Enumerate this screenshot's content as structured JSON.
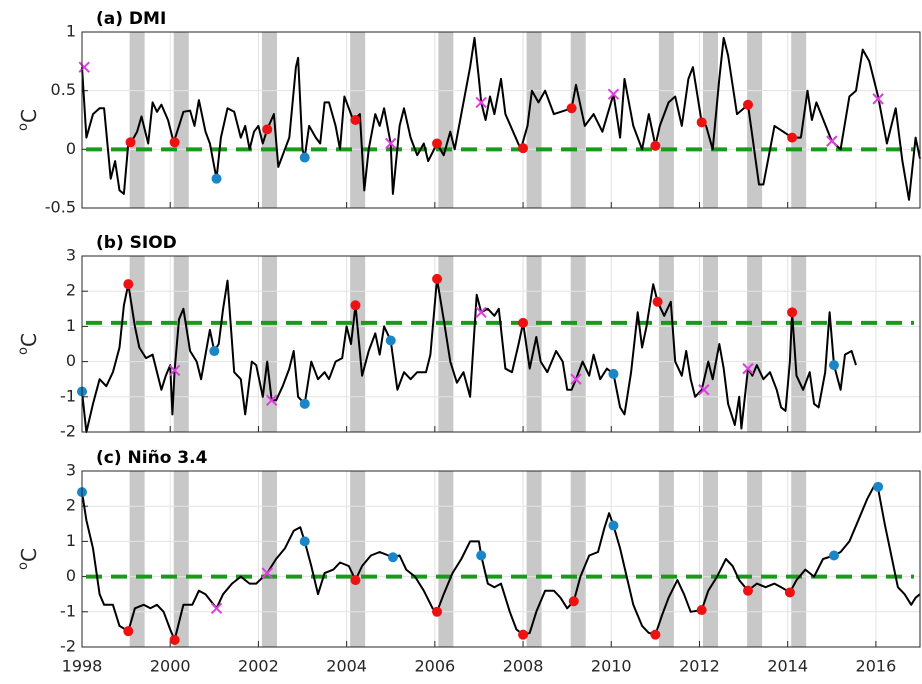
{
  "chart_data": [
    {
      "type": "line",
      "title": "(a) DMI",
      "ylabel": [
        "o",
        "C"
      ],
      "color": "#000000",
      "xlim": [
        1998,
        2017
      ],
      "ylim": [
        -0.5,
        1
      ],
      "yticks": [
        -0.5,
        0,
        0.5,
        1
      ],
      "grid": true,
      "reference_line": {
        "value": 0,
        "color": "#1a9a1a"
      },
      "shaded": [
        [
          1999.08,
          1999.42
        ],
        [
          2000.08,
          2000.42
        ],
        [
          2002.08,
          2002.42
        ],
        [
          2004.08,
          2004.42
        ],
        [
          2006.08,
          2006.42
        ],
        [
          2008.08,
          2008.42
        ],
        [
          2009.08,
          2009.42
        ],
        [
          2011.08,
          2011.42
        ],
        [
          2012.08,
          2012.42
        ],
        [
          2013.08,
          2013.42
        ],
        [
          2014.08,
          2014.42
        ]
      ],
      "shade_color": "#c8c8c8",
      "x": [
        1998.0,
        1998.1,
        1998.25,
        1998.4,
        1998.5,
        1998.65,
        1998.75,
        1998.85,
        1998.95,
        1999.05,
        1999.1,
        1999.25,
        1999.35,
        1999.5,
        1999.6,
        1999.7,
        1999.8,
        1999.95,
        2000.08,
        2000.2,
        2000.3,
        2000.45,
        2000.55,
        2000.65,
        2000.8,
        2000.9,
        2001.05,
        2001.15,
        2001.3,
        2001.45,
        2001.6,
        2001.7,
        2001.8,
        2001.9,
        2002.0,
        2002.1,
        2002.2,
        2002.35,
        2002.45,
        2002.6,
        2002.7,
        2002.85,
        2002.9,
        2003.0,
        2003.05,
        2003.15,
        2003.3,
        2003.4,
        2003.5,
        2003.6,
        2003.75,
        2003.85,
        2003.95,
        2004.15,
        2004.3,
        2004.4,
        2004.5,
        2004.65,
        2004.75,
        2004.85,
        2005.0,
        2005.05,
        2005.2,
        2005.3,
        2005.45,
        2005.6,
        2005.75,
        2005.85,
        2006.05,
        2006.2,
        2006.35,
        2006.45,
        2006.6,
        2006.8,
        2006.9,
        2007.0,
        2007.05,
        2007.15,
        2007.25,
        2007.35,
        2007.5,
        2007.6,
        2007.95,
        2008.1,
        2008.2,
        2008.35,
        2008.5,
        2008.7,
        2009.1,
        2009.2,
        2009.4,
        2009.6,
        2009.8,
        2010.05,
        2010.2,
        2010.3,
        2010.5,
        2010.7,
        2010.85,
        2011.0,
        2011.1,
        2011.3,
        2011.45,
        2011.6,
        2011.75,
        2011.85,
        2012.05,
        2012.15,
        2012.3,
        2012.45,
        2012.55,
        2012.65,
        2012.85,
        2013.1,
        2013.35,
        2013.45,
        2013.7,
        2014.1,
        2014.3,
        2014.45,
        2014.55,
        2014.65,
        2015.0,
        2015.2,
        2015.4,
        2015.55,
        2015.7,
        2015.85,
        2016.05,
        2016.25,
        2016.45,
        2016.6,
        2016.75,
        2016.9,
        2017.0
      ],
      "values": [
        0.7,
        0.1,
        0.3,
        0.35,
        0.35,
        -0.25,
        -0.1,
        -0.35,
        -0.38,
        0.05,
        0.05,
        0.15,
        0.28,
        0.05,
        0.4,
        0.32,
        0.38,
        0.25,
        0.06,
        0.2,
        0.32,
        0.33,
        0.2,
        0.42,
        0.15,
        0.05,
        -0.25,
        0.1,
        0.35,
        0.32,
        0.1,
        0.2,
        0.0,
        0.15,
        0.2,
        0.05,
        0.17,
        0.3,
        -0.15,
        0.0,
        0.1,
        0.7,
        0.78,
        0.0,
        -0.07,
        0.2,
        0.1,
        0.05,
        0.4,
        0.4,
        0.2,
        0.0,
        0.45,
        0.25,
        0.3,
        -0.35,
        0.0,
        0.3,
        0.2,
        0.35,
        0.05,
        -0.38,
        0.2,
        0.35,
        0.1,
        -0.05,
        0.05,
        -0.1,
        0.05,
        -0.05,
        0.15,
        0.0,
        0.3,
        0.7,
        0.95,
        0.6,
        0.4,
        0.25,
        0.45,
        0.3,
        0.6,
        0.3,
        0.0,
        0.2,
        0.5,
        0.4,
        0.5,
        0.3,
        0.35,
        0.55,
        0.2,
        0.3,
        0.15,
        0.47,
        0.1,
        0.6,
        0.2,
        0.0,
        0.3,
        0.03,
        0.2,
        0.4,
        0.45,
        0.2,
        0.6,
        0.7,
        0.23,
        0.2,
        0.0,
        0.6,
        0.95,
        0.8,
        0.3,
        0.38,
        -0.3,
        -0.3,
        0.2,
        0.1,
        0.1,
        0.5,
        0.25,
        0.4,
        0.07,
        0.0,
        0.45,
        0.5,
        0.85,
        0.75,
        0.45,
        0.05,
        0.35,
        -0.1,
        -0.43,
        0.1,
        -0.08
      ],
      "markers": [
        {
          "symbol": "circle",
          "color": "#ee1111",
          "x": [
            1999.1,
            2000.1,
            2002.2,
            2004.2,
            2006.05,
            2008.0,
            2009.1,
            2011.0,
            2012.05,
            2013.1,
            2014.1
          ],
          "values": [
            0.06,
            0.06,
            0.17,
            0.25,
            0.05,
            0.01,
            0.35,
            0.03,
            0.23,
            0.38,
            0.1
          ]
        },
        {
          "symbol": "circle",
          "color": "#1a86c8",
          "x": [
            2001.05,
            2003.05
          ],
          "values": [
            -0.25,
            -0.07
          ]
        },
        {
          "symbol": "cross",
          "color": "#e03ce0",
          "x": [
            1998.05,
            2005.0,
            2007.05,
            2010.05,
            2015.0,
            2016.05
          ],
          "values": [
            0.7,
            0.05,
            0.4,
            0.47,
            0.07,
            0.43
          ]
        }
      ]
    },
    {
      "type": "line",
      "title": "(b) SIOD",
      "ylabel": [
        "o",
        "C"
      ],
      "color": "#000000",
      "xlim": [
        1998,
        2017
      ],
      "ylim": [
        -2,
        3
      ],
      "yticks": [
        -2,
        -1,
        0,
        1,
        2,
        3
      ],
      "grid": true,
      "reference_line": {
        "value": 1.1,
        "color": "#1a9a1a"
      },
      "shaded": [
        [
          1999.08,
          1999.42
        ],
        [
          2000.08,
          2000.42
        ],
        [
          2002.08,
          2002.42
        ],
        [
          2004.08,
          2004.42
        ],
        [
          2006.08,
          2006.42
        ],
        [
          2008.08,
          2008.42
        ],
        [
          2009.08,
          2009.42
        ],
        [
          2011.08,
          2011.42
        ],
        [
          2012.08,
          2012.42
        ],
        [
          2013.08,
          2013.42
        ],
        [
          2014.08,
          2014.42
        ]
      ],
      "shade_color": "#c8c8c8",
      "x": [
        1998.0,
        1998.1,
        1998.25,
        1998.4,
        1998.55,
        1998.7,
        1998.85,
        1998.95,
        1999.05,
        1999.2,
        1999.3,
        1999.45,
        1999.6,
        1999.7,
        1999.8,
        1999.9,
        2000.0,
        2000.05,
        2000.1,
        2000.2,
        2000.3,
        2000.45,
        2000.6,
        2000.7,
        2000.9,
        2001.0,
        2001.1,
        2001.2,
        2001.3,
        2001.45,
        2001.6,
        2001.7,
        2001.85,
        2001.95,
        2002.1,
        2002.2,
        2002.3,
        2002.4,
        2002.55,
        2002.7,
        2002.8,
        2002.9,
        2003.05,
        2003.2,
        2003.35,
        2003.5,
        2003.6,
        2003.75,
        2003.9,
        2004.0,
        2004.1,
        2004.2,
        2004.35,
        2004.5,
        2004.65,
        2004.75,
        2004.85,
        2005.0,
        2005.15,
        2005.3,
        2005.45,
        2005.6,
        2005.8,
        2005.9,
        2006.05,
        2006.2,
        2006.35,
        2006.5,
        2006.65,
        2006.8,
        2006.95,
        2007.05,
        2007.2,
        2007.35,
        2007.45,
        2007.6,
        2007.75,
        2007.9,
        2008.0,
        2008.15,
        2008.3,
        2008.4,
        2008.55,
        2008.75,
        2008.9,
        2009.0,
        2009.1,
        2009.2,
        2009.35,
        2009.5,
        2009.6,
        2009.75,
        2009.9,
        2010.05,
        2010.2,
        2010.3,
        2010.45,
        2010.6,
        2010.7,
        2010.8,
        2010.95,
        2011.05,
        2011.2,
        2011.35,
        2011.45,
        2011.6,
        2011.7,
        2011.8,
        2011.9,
        2012.05,
        2012.2,
        2012.3,
        2012.45,
        2012.55,
        2012.65,
        2012.8,
        2012.9,
        2012.95,
        2013.1,
        2013.2,
        2013.3,
        2013.45,
        2013.6,
        2013.75,
        2013.85,
        2013.95,
        2014.05,
        2014.1,
        2014.2,
        2014.35,
        2014.5,
        2014.6,
        2014.7,
        2014.85,
        2014.95,
        2015.05,
        2015.2,
        2015.3,
        2015.45,
        2015.55
      ],
      "values": [
        -0.85,
        -2.0,
        -1.2,
        -0.5,
        -0.7,
        -0.3,
        0.4,
        1.6,
        2.2,
        1.0,
        0.4,
        0.1,
        0.2,
        -0.3,
        -0.8,
        -0.4,
        -0.1,
        -1.5,
        -0.25,
        1.2,
        1.5,
        0.3,
        0.0,
        -0.5,
        0.9,
        0.3,
        0.5,
        1.5,
        2.3,
        -0.3,
        -0.5,
        -1.5,
        0.0,
        -0.1,
        -1.0,
        0.0,
        -1.1,
        -1.1,
        -0.7,
        -0.2,
        0.3,
        -1.0,
        -1.2,
        0.0,
        -0.5,
        -0.3,
        -0.5,
        0.0,
        0.1,
        1.0,
        0.5,
        1.6,
        -0.4,
        0.3,
        0.8,
        0.2,
        1.0,
        0.6,
        -0.8,
        -0.3,
        -0.5,
        -0.3,
        -0.3,
        0.2,
        2.35,
        1.2,
        0.0,
        -0.6,
        -0.3,
        -1.0,
        1.9,
        1.4,
        1.5,
        1.3,
        1.5,
        -0.2,
        -0.3,
        0.5,
        1.1,
        -0.2,
        0.7,
        0.0,
        -0.3,
        0.3,
        0.0,
        -0.8,
        -0.8,
        -0.5,
        0.0,
        -0.4,
        0.2,
        -0.5,
        -0.2,
        -0.35,
        -1.3,
        -1.5,
        -0.3,
        1.4,
        0.4,
        1.0,
        2.2,
        1.7,
        1.3,
        1.7,
        0.0,
        -0.4,
        0.3,
        -0.5,
        -1.0,
        -0.8,
        0.0,
        -0.5,
        0.5,
        -0.2,
        -1.2,
        -1.8,
        -1.0,
        -1.9,
        -0.2,
        -0.4,
        -0.1,
        -0.5,
        -0.3,
        -0.8,
        -1.3,
        -1.4,
        0.0,
        1.4,
        -0.4,
        -0.8,
        -0.3,
        -1.2,
        -1.3,
        -0.3,
        1.4,
        -0.1,
        -0.8,
        0.2,
        0.3,
        -0.1
      ],
      "markers": [
        {
          "symbol": "circle",
          "color": "#ee1111",
          "x": [
            1999.05,
            2004.2,
            2006.05,
            2008.0,
            2011.05,
            2014.1
          ],
          "values": [
            2.2,
            1.6,
            2.35,
            1.1,
            1.7,
            1.4
          ]
        },
        {
          "symbol": "circle",
          "color": "#1a86c8",
          "x": [
            1998.0,
            2001.0,
            2003.05,
            2005.0,
            2010.05,
            2015.05
          ],
          "values": [
            -0.85,
            0.3,
            -1.2,
            0.6,
            -0.35,
            -0.1
          ]
        },
        {
          "symbol": "cross",
          "color": "#e03ce0",
          "x": [
            2000.1,
            2002.3,
            2007.05,
            2009.2,
            2012.1,
            2013.1
          ],
          "values": [
            -0.25,
            -1.1,
            1.4,
            -0.5,
            -0.8,
            -0.2
          ]
        }
      ]
    },
    {
      "type": "line",
      "title": "(c) Niño 3.4",
      "ylabel": [
        "o",
        "C"
      ],
      "color": "#000000",
      "xlim": [
        1998,
        2017
      ],
      "xticks": [
        1998,
        2000,
        2002,
        2004,
        2006,
        2008,
        2010,
        2012,
        2014,
        2016
      ],
      "ylim": [
        -2,
        3
      ],
      "yticks": [
        -2,
        -1,
        0,
        1,
        2,
        3
      ],
      "grid": true,
      "reference_line": {
        "value": 0,
        "color": "#1a9a1a"
      },
      "shaded": [
        [
          1999.08,
          1999.42
        ],
        [
          2000.08,
          2000.42
        ],
        [
          2002.08,
          2002.42
        ],
        [
          2004.08,
          2004.42
        ],
        [
          2006.08,
          2006.42
        ],
        [
          2008.08,
          2008.42
        ],
        [
          2009.08,
          2009.42
        ],
        [
          2011.08,
          2011.42
        ],
        [
          2012.08,
          2012.42
        ],
        [
          2013.08,
          2013.42
        ],
        [
          2014.08,
          2014.42
        ]
      ],
      "shade_color": "#c8c8c8",
      "x": [
        1998.0,
        1998.1,
        1998.25,
        1998.4,
        1998.5,
        1998.7,
        1998.85,
        1999.05,
        1999.2,
        1999.4,
        1999.55,
        1999.7,
        1999.85,
        2000.0,
        2000.1,
        2000.3,
        2000.5,
        2000.65,
        2000.8,
        2001.05,
        2001.2,
        2001.4,
        2001.6,
        2001.8,
        2001.95,
        2002.2,
        2002.4,
        2002.6,
        2002.8,
        2002.95,
        2003.05,
        2003.2,
        2003.35,
        2003.5,
        2003.7,
        2003.85,
        2004.05,
        2004.2,
        2004.35,
        2004.55,
        2004.75,
        2004.95,
        2005.05,
        2005.2,
        2005.35,
        2005.55,
        2005.75,
        2005.95,
        2006.05,
        2006.2,
        2006.4,
        2006.6,
        2006.8,
        2007.0,
        2007.05,
        2007.2,
        2007.35,
        2007.5,
        2007.7,
        2007.85,
        2008.0,
        2008.15,
        2008.3,
        2008.5,
        2008.7,
        2008.85,
        2009.0,
        2009.15,
        2009.3,
        2009.5,
        2009.7,
        2009.85,
        2009.95,
        2010.05,
        2010.2,
        2010.35,
        2010.5,
        2010.7,
        2010.85,
        2011.0,
        2011.15,
        2011.3,
        2011.5,
        2011.65,
        2011.8,
        2012.05,
        2012.2,
        2012.4,
        2012.6,
        2012.75,
        2012.9,
        2013.1,
        2013.3,
        2013.5,
        2013.7,
        2013.85,
        2014.05,
        2014.2,
        2014.4,
        2014.6,
        2014.8,
        2015.05,
        2015.2,
        2015.4,
        2015.6,
        2015.8,
        2015.95,
        2016.05,
        2016.2,
        2016.35,
        2016.5,
        2016.65,
        2016.8,
        2016.9,
        2017.0
      ],
      "values": [
        2.4,
        1.6,
        0.8,
        -0.5,
        -0.8,
        -0.8,
        -1.4,
        -1.55,
        -0.9,
        -0.8,
        -0.9,
        -0.8,
        -1.0,
        -1.5,
        -1.8,
        -0.8,
        -0.8,
        -0.4,
        -0.5,
        -0.9,
        -0.5,
        -0.2,
        0.0,
        -0.2,
        -0.2,
        0.1,
        0.5,
        0.8,
        1.3,
        1.4,
        1.0,
        0.3,
        -0.5,
        0.1,
        0.2,
        0.4,
        0.3,
        -0.1,
        0.3,
        0.6,
        0.7,
        0.6,
        0.55,
        0.6,
        0.2,
        0.0,
        -0.4,
        -0.9,
        -1.0,
        -0.5,
        0.1,
        0.5,
        1.0,
        1.0,
        0.6,
        -0.2,
        -0.3,
        -0.2,
        -1.0,
        -1.5,
        -1.65,
        -1.6,
        -1.0,
        -0.4,
        -0.4,
        -0.6,
        -0.9,
        -0.7,
        0.0,
        0.6,
        0.7,
        1.4,
        1.8,
        1.45,
        0.8,
        0.0,
        -0.8,
        -1.4,
        -1.6,
        -1.65,
        -1.1,
        -0.6,
        -0.1,
        -0.5,
        -1.0,
        -0.95,
        -0.4,
        0.0,
        0.5,
        0.3,
        -0.1,
        -0.4,
        -0.2,
        -0.3,
        -0.2,
        -0.3,
        -0.45,
        -0.1,
        0.2,
        0.0,
        0.5,
        0.6,
        0.7,
        1.0,
        1.6,
        2.2,
        2.55,
        2.5,
        1.5,
        0.6,
        -0.3,
        -0.5,
        -0.8,
        -0.6,
        -0.5
      ],
      "markers": [
        {
          "symbol": "circle",
          "color": "#ee1111",
          "x": [
            1999.05,
            2000.1,
            2004.2,
            2006.05,
            2008.0,
            2009.15,
            2011.0,
            2012.05,
            2013.1,
            2014.05
          ],
          "values": [
            -1.55,
            -1.8,
            -0.1,
            -1.0,
            -1.65,
            -0.7,
            -1.65,
            -0.95,
            -0.4,
            -0.45
          ]
        },
        {
          "symbol": "circle",
          "color": "#1a86c8",
          "x": [
            1998.0,
            2003.05,
            2005.05,
            2007.05,
            2010.05,
            2015.05,
            2016.05
          ],
          "values": [
            2.4,
            1.0,
            0.55,
            0.6,
            1.45,
            0.6,
            2.55
          ]
        },
        {
          "symbol": "cross",
          "color": "#e03ce0",
          "x": [
            2001.05,
            2002.2
          ],
          "values": [
            -0.9,
            0.1
          ]
        }
      ]
    }
  ]
}
